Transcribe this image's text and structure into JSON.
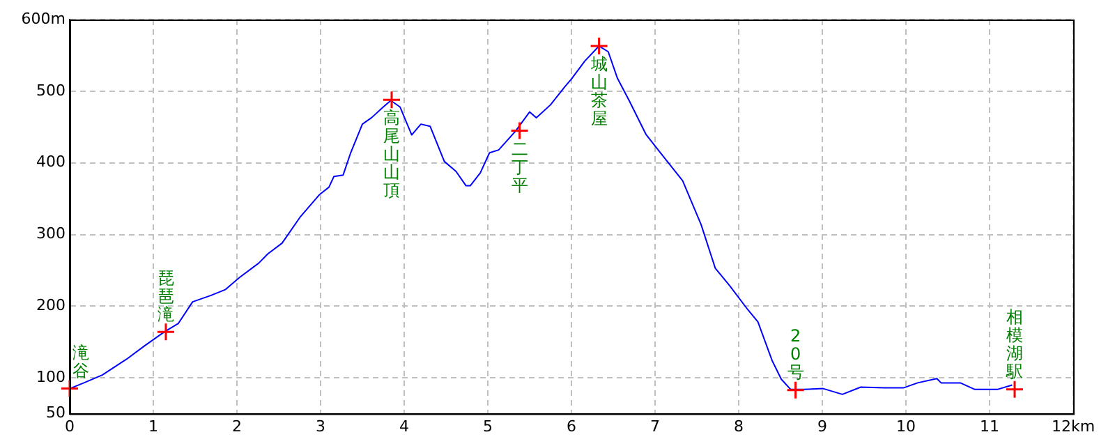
{
  "chart_data": {
    "type": "line",
    "xlim": [
      0,
      12
    ],
    "xticks": [
      0,
      1,
      2,
      3,
      4,
      5,
      6,
      7,
      8,
      9,
      10,
      11,
      {
        "value": 12,
        "label": "12km"
      }
    ],
    "ylim": [
      50,
      600
    ],
    "yticks": [
      50,
      100,
      200,
      300,
      400,
      500,
      {
        "value": 600,
        "label": "600m"
      }
    ],
    "grid": true,
    "legend": false,
    "line_style": "solid",
    "series": [
      {
        "color": "#0000ff",
        "marker": "none",
        "x": [
          0,
          0.17,
          0.39,
          0.68,
          0.9,
          1.13,
          1.3,
          1.47,
          1.69,
          1.86,
          2.03,
          2.26,
          2.37,
          2.54,
          2.76,
          2.99,
          3.1,
          3.16,
          3.27,
          3.36,
          3.5,
          3.61,
          3.75,
          3.84,
          3.95,
          4.09,
          4.2,
          4.31,
          4.48,
          4.62,
          4.74,
          4.79,
          4.91,
          5.02,
          5.13,
          5.33,
          5.5,
          5.58,
          5.75,
          5.92,
          6.0,
          6.16,
          6.33,
          6.44,
          6.55,
          6.69,
          6.89,
          7.05,
          7.33,
          7.55,
          7.72,
          7.89,
          8.11,
          8.23,
          8.4,
          8.51,
          8.62,
          8.79,
          9.01,
          9.24,
          9.46,
          9.74,
          9.97,
          10.14,
          10.37,
          10.42,
          10.65,
          10.82,
          11.1,
          11.27
        ],
        "values": [
          85,
          93,
          104,
          126,
          145,
          164,
          176,
          206,
          215,
          223,
          240,
          260,
          273,
          288,
          325,
          356,
          366,
          381,
          383,
          414,
          454,
          463,
          478,
          487,
          478,
          439,
          454,
          451,
          402,
          388,
          368,
          368,
          386,
          414,
          418,
          444,
          471,
          463,
          481,
          506,
          517,
          542,
          563,
          555,
          518,
          487,
          440,
          416,
          375,
          314,
          253,
          229,
          195,
          178,
          124,
          98,
          84,
          84,
          85,
          77,
          87,
          86,
          86,
          93,
          99,
          93,
          93,
          84,
          84,
          90
        ]
      },
      {
        "type": "scatter",
        "color": "#ff0000",
        "marker": "cross",
        "x": [
          0,
          1.15,
          3.85,
          5.38,
          6.33,
          8.68,
          11.3
        ],
        "values": [
          85,
          164,
          488,
          445,
          563,
          83,
          84
        ]
      }
    ],
    "annotations": [
      {
        "text": "滝谷",
        "x": 0,
        "y": 85
      },
      {
        "text": "琵琶滝",
        "x": 1.15,
        "y": 164
      },
      {
        "text": "高尾山山頂",
        "x": 3.85,
        "y": 488
      },
      {
        "text": "二丁平",
        "x": 5.38,
        "y": 445
      },
      {
        "text": "城山茶屋",
        "x": 6.33,
        "y": 563
      },
      {
        "text": "20号",
        "x": 8.68,
        "y": 83
      },
      {
        "text": "相模湖駅",
        "x": 11.3,
        "y": 84
      }
    ]
  }
}
